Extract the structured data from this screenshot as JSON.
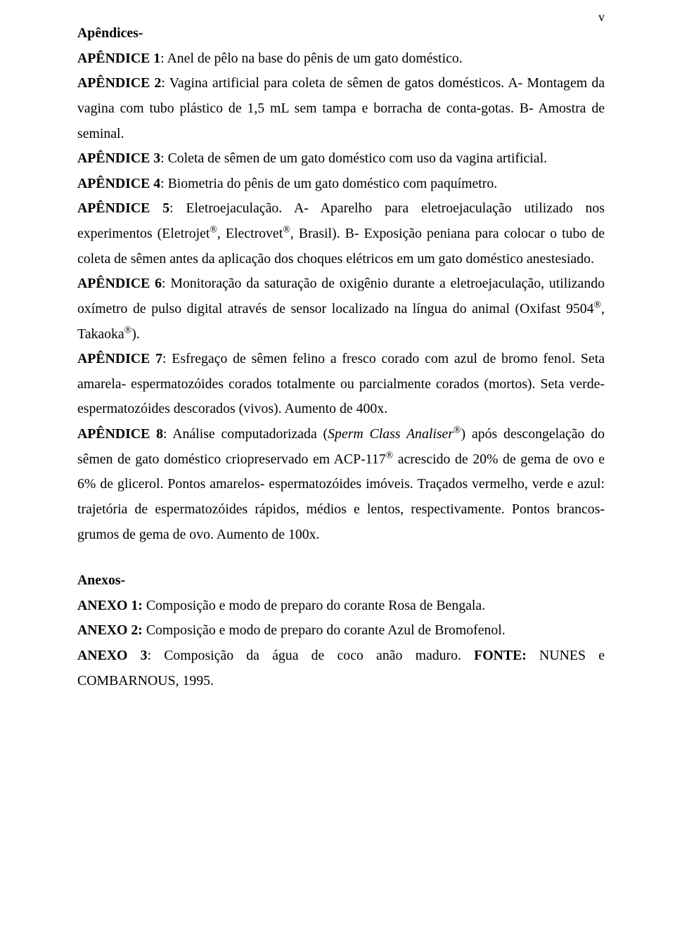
{
  "page_number": "v",
  "section1_title": "Apêndices-",
  "ap1_label": "APÊNDICE 1",
  "ap1_text": ": Anel de pêlo na base do pênis de um gato doméstico.",
  "ap2_label": "APÊNDICE 2",
  "ap2_text_a": ": Vagina artificial para coleta de sêmen de gatos domésticos. A- Montagem da vagina com tubo plástico de 1,5 mL sem tampa e borracha de conta-gotas. B- Amostra de seminal.",
  "ap3_label": "APÊNDICE 3",
  "ap3_text": ": Coleta de sêmen de um gato doméstico com uso da vagina artificial.",
  "ap4_label": "APÊNDICE 4",
  "ap4_text": ": Biometria do pênis de um gato doméstico com paquímetro.",
  "ap5_label": "APÊNDICE 5",
  "ap5_text_a": ": Eletroejaculação. A- Aparelho para eletroejaculação utilizado nos experimentos (Eletrojet",
  "ap5_text_b": ", Electrovet",
  "ap5_text_c": ", Brasil). B- Exposição peniana para colocar o tubo de coleta de sêmen antes da aplicação dos choques elétricos em um gato doméstico anestesiado.",
  "ap6_label": "APÊNDICE 6",
  "ap6_text_a": ": Monitoração da saturação de oxigênio durante a eletroejaculação, utilizando oxímetro de pulso digital através de sensor localizado na língua do animal (Oxifast 9504",
  "ap6_text_b": ", Takaoka",
  "ap6_text_c": ").",
  "ap7_label": "APÊNDICE 7",
  "ap7_text": ": Esfregaço de sêmen felino a fresco corado com azul de bromo fenol. Seta amarela- espermatozóides corados totalmente ou parcialmente corados (mortos). Seta verde- espermatozóides descorados (vivos). Aumento de 400x.",
  "ap8_label": "APÊNDICE 8",
  "ap8_text_a": ": Análise computadorizada (",
  "ap8_italic": "Sperm Class Analiser",
  "ap8_text_b": ") após descongelação do sêmen de gato doméstico criopreservado em ACP-117",
  "ap8_text_c": " acrescido de 20% de gema de ovo e 6% de glicerol. Pontos amarelos- espermatozóides imóveis. Traçados vermelho, verde e azul: trajetória de espermatozóides rápidos, médios e lentos, respectivamente. Pontos brancos- grumos de gema de ovo. Aumento de 100x.",
  "reg": "®",
  "section2_title": "Anexos-",
  "an1_label": "ANEXO 1:",
  "an1_text": " Composição e modo de preparo do corante Rosa de Bengala.",
  "an2_label": "ANEXO 2:",
  "an2_text": " Composição e modo de preparo do corante Azul de Bromofenol.",
  "an3_label": "ANEXO 3",
  "an3_text_a": ": Composição da água de coco anão maduro. ",
  "an3_bold": "FONTE:",
  "an3_text_b": " NUNES e COMBARNOUS, 1995."
}
